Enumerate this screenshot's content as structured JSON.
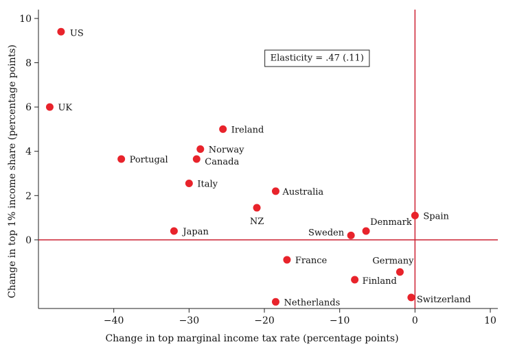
{
  "chart_data": {
    "type": "scatter",
    "title": "",
    "xlabel": "Change in top marginal income tax rate (percentage points)",
    "ylabel": "Change in top 1% income share (percentage points)",
    "xlim": [
      -50,
      11
    ],
    "ylim": [
      -3.1,
      10.4
    ],
    "x_ticks": [
      -40,
      -30,
      -20,
      -10,
      0,
      10
    ],
    "x_tick_labels": [
      "−40",
      "−30",
      "−20",
      "−10",
      "0",
      "10"
    ],
    "y_ticks": [
      0,
      2,
      4,
      6,
      8,
      10
    ],
    "y_tick_labels": [
      "0",
      "2",
      "4",
      "6",
      "8",
      "10"
    ],
    "reference_lines": {
      "x": 0,
      "y": 0,
      "color": "#cc2233"
    },
    "marker_color": "#e8232b",
    "grid": false,
    "legend": "none",
    "annotation": {
      "text": "Elasticity = .47 (.11)",
      "x": -13.0,
      "y": 8.2
    },
    "points": [
      {
        "label": "US",
        "x": -47.0,
        "y": 9.4
      },
      {
        "label": "UK",
        "x": -48.5,
        "y": 6.0
      },
      {
        "label": "Ireland",
        "x": -25.5,
        "y": 5.0
      },
      {
        "label": "Norway",
        "x": -28.5,
        "y": 4.1
      },
      {
        "label": "Portugal",
        "x": -39.0,
        "y": 3.65
      },
      {
        "label": "Canada",
        "x": -29.0,
        "y": 3.65
      },
      {
        "label": "Italy",
        "x": -30.0,
        "y": 2.55
      },
      {
        "label": "Australia",
        "x": -18.5,
        "y": 2.2
      },
      {
        "label": "NZ",
        "x": -21.0,
        "y": 1.45
      },
      {
        "label": "Spain",
        "x": 0.0,
        "y": 1.1
      },
      {
        "label": "Japan",
        "x": -32.0,
        "y": 0.4
      },
      {
        "label": "Denmark",
        "x": -6.5,
        "y": 0.4
      },
      {
        "label": "Sweden",
        "x": -8.5,
        "y": 0.2
      },
      {
        "label": "France",
        "x": -17.0,
        "y": -0.9
      },
      {
        "label": "Germany",
        "x": -2.0,
        "y": -1.45
      },
      {
        "label": "Finland",
        "x": -8.0,
        "y": -1.8
      },
      {
        "label": "Switzerland",
        "x": -0.5,
        "y": -2.6
      },
      {
        "label": "Netherlands",
        "x": -18.5,
        "y": -2.8
      }
    ]
  }
}
